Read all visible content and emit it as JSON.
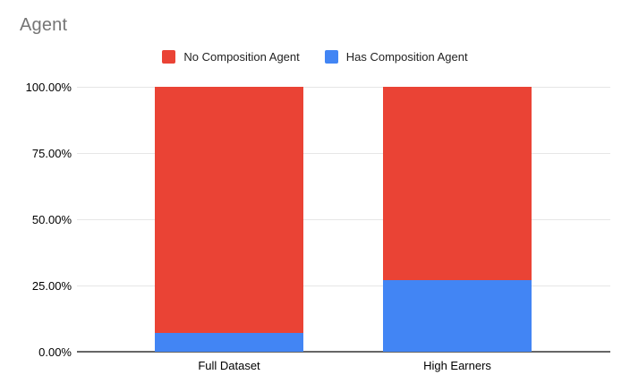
{
  "title": "Agent",
  "colors": {
    "series_red": "#EA4335",
    "series_blue": "#4285F4",
    "gridline": "#e6e6e6",
    "axis_line": "#666666",
    "title_text": "#757575",
    "label_text": "#000000",
    "legend_text": "#222222",
    "background": "#ffffff"
  },
  "legend": {
    "items": [
      {
        "label": "No Composition Agent",
        "color": "#EA4335"
      },
      {
        "label": "Has Composition Agent",
        "color": "#4285F4"
      }
    ]
  },
  "chart_data": {
    "type": "bar",
    "subtype": "stacked-100-percent-column",
    "title": "Agent",
    "xlabel": "",
    "ylabel": "",
    "categories": [
      "Full Dataset",
      "High Earners"
    ],
    "series": [
      {
        "name": "No Composition Agent",
        "color": "#EA4335",
        "values": [
          93,
          73
        ]
      },
      {
        "name": "Has Composition Agent",
        "color": "#4285F4",
        "values": [
          7,
          27
        ]
      }
    ],
    "ylim": [
      0,
      100
    ],
    "ytick_labels": [
      "100.00%",
      "75.00%",
      "50.00%",
      "25.00%",
      "0.00%"
    ],
    "ytick_values": [
      100,
      75,
      50,
      25,
      0
    ],
    "grid": true,
    "legend_position": "top"
  }
}
